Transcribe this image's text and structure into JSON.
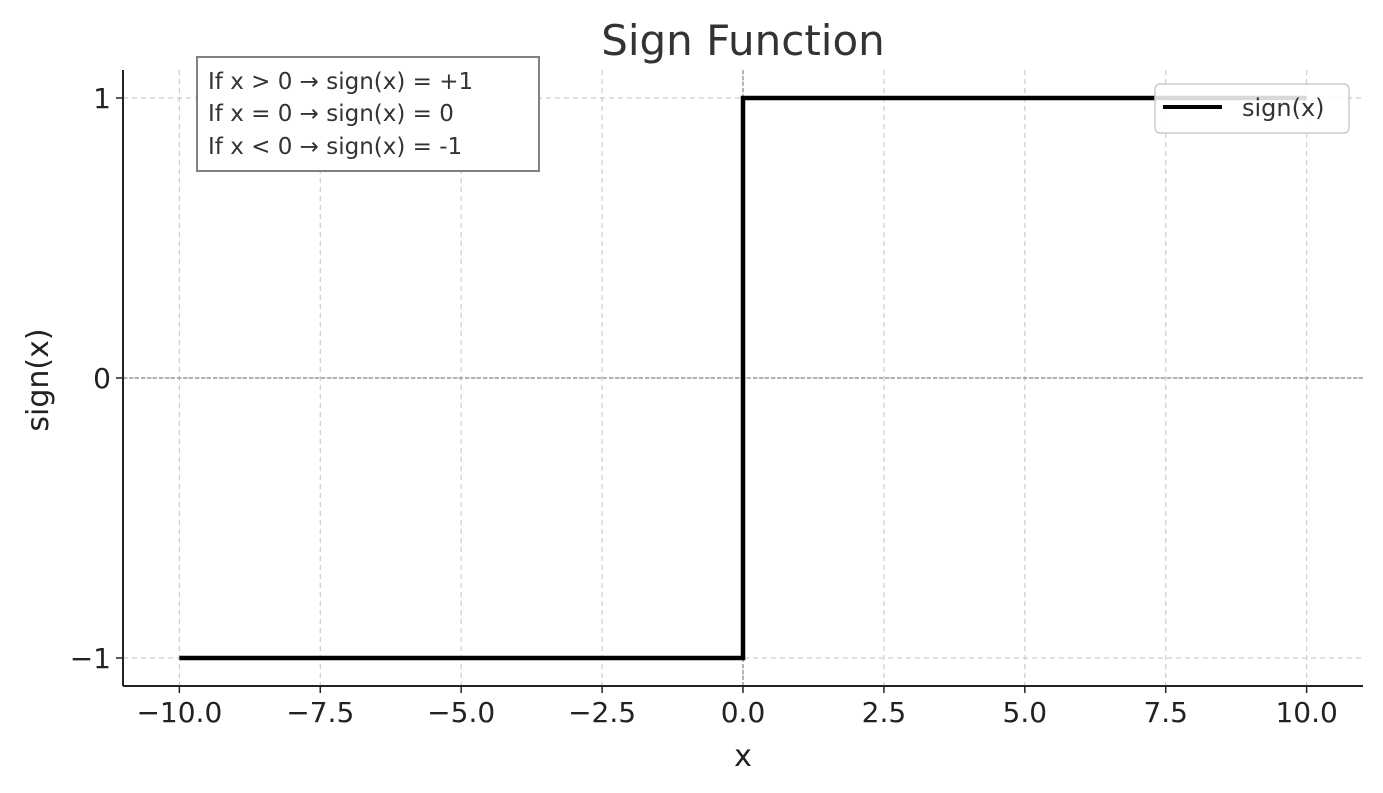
{
  "chart_data": {
    "type": "line",
    "title": "Sign Function",
    "xlabel": "x",
    "ylabel": "sign(x)",
    "xlim": [
      -11,
      11
    ],
    "ylim": [
      -1.1,
      1.1
    ],
    "x_ticks": [
      -10,
      -7.5,
      -5,
      -2.5,
      0,
      2.5,
      5,
      7.5,
      10
    ],
    "x_tick_labels": [
      "−10.0",
      "−7.5",
      "−5.0",
      "−2.5",
      "0.0",
      "2.5",
      "5.0",
      "7.5",
      "10.0"
    ],
    "y_ticks": [
      -1,
      0,
      1
    ],
    "y_tick_labels": [
      "−1",
      "0",
      "1"
    ],
    "grid": true,
    "reference_lines": {
      "x": 0,
      "y": 0
    },
    "series": [
      {
        "name": "sign(x)",
        "color": "#000000",
        "x": [
          -10,
          0,
          0,
          10
        ],
        "y": [
          -1,
          -1,
          1,
          1
        ]
      }
    ],
    "legend": {
      "position": "top-right",
      "entries": [
        "sign(x)"
      ]
    },
    "annotation": {
      "lines": [
        "If x > 0 → sign(x) = +1",
        "If x = 0 → sign(x) = 0",
        "If x < 0 → sign(x) = -1"
      ],
      "position": "top-left"
    }
  }
}
